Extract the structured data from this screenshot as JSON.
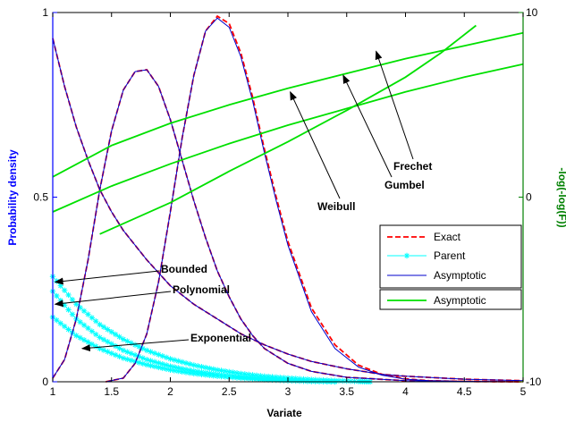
{
  "chart_data": {
    "type": "line",
    "xlabel": "Variate",
    "ylabel_left": "Probability density",
    "ylabel_right": "-log(-log(F))",
    "xlim": [
      1,
      5
    ],
    "ylim_left": [
      0,
      1
    ],
    "ylim_right": [
      -10,
      10
    ],
    "xticks": [
      "1",
      "1.5",
      "2",
      "2.5",
      "3",
      "3.5",
      "4",
      "4.5",
      "5"
    ],
    "yticks_left": [
      "0",
      "0.5",
      "1"
    ],
    "yticks_right": [
      "-10",
      "0",
      "10"
    ],
    "colors": {
      "exact": "#ff0000",
      "parent": "#00ffff",
      "asymptotic_pdf": "#0000cc",
      "asymptotic_line": "#00e000",
      "left_axis": "#0000ff",
      "right_axis": "#008000"
    },
    "legend_position": "right",
    "legend": [
      {
        "label": "Exact",
        "style": "dashed-red"
      },
      {
        "label": "Parent",
        "style": "cyan-star"
      },
      {
        "label": "Asymptotic",
        "style": "solid-blue"
      },
      {
        "label": "Asymptotic",
        "style": "solid-green"
      }
    ],
    "annotations": [
      {
        "text": "Bounded",
        "target": [
          1.02,
          0.27
        ]
      },
      {
        "text": "Polynomial",
        "target": [
          1.02,
          0.21
        ]
      },
      {
        "text": "Exponential",
        "target": [
          1.25,
          0.09
        ]
      },
      {
        "text": "Frechet",
        "target": [
          3.75,
          7.9
        ]
      },
      {
        "text": "Gumbel",
        "target": [
          3.47,
          6.6
        ]
      },
      {
        "text": "Weibull",
        "target": [
          3.02,
          5.7
        ]
      }
    ],
    "series": [
      {
        "name": "Exact",
        "curves": [
          {
            "x": [
              1.0,
              1.1,
              1.2,
              1.3,
              1.4,
              1.5,
              1.6,
              1.8,
              2.0,
              2.2,
              2.4,
              2.6,
              2.8,
              3.0,
              3.2,
              3.5,
              3.8,
              4.0,
              4.5,
              5.0
            ],
            "y": [
              0.93,
              0.8,
              0.69,
              0.6,
              0.52,
              0.46,
              0.41,
              0.33,
              0.26,
              0.21,
              0.17,
              0.13,
              0.1,
              0.075,
              0.055,
              0.035,
              0.02,
              0.015,
              0.007,
              0.003
            ]
          },
          {
            "x": [
              1.0,
              1.1,
              1.2,
              1.3,
              1.4,
              1.5,
              1.6,
              1.7,
              1.8,
              1.9,
              2.0,
              2.1,
              2.2,
              2.3,
              2.4,
              2.5,
              2.6,
              2.7,
              2.8,
              3.0,
              3.2,
              3.5,
              4.0,
              4.5,
              5.0
            ],
            "y": [
              0.01,
              0.06,
              0.17,
              0.33,
              0.52,
              0.68,
              0.79,
              0.84,
              0.845,
              0.8,
              0.71,
              0.6,
              0.49,
              0.39,
              0.3,
              0.23,
              0.17,
              0.125,
              0.09,
              0.05,
              0.028,
              0.012,
              0.003,
              0.001,
              0.0
            ]
          },
          {
            "x": [
              1.45,
              1.6,
              1.7,
              1.8,
              1.9,
              2.0,
              2.1,
              2.2,
              2.3,
              2.4,
              2.5,
              2.6,
              2.7,
              2.8,
              2.9,
              3.0,
              3.2,
              3.4,
              3.6,
              3.8,
              4.0,
              4.2,
              4.5,
              5.0
            ],
            "y": [
              0.0,
              0.01,
              0.05,
              0.13,
              0.27,
              0.46,
              0.66,
              0.83,
              0.95,
              0.99,
              0.97,
              0.89,
              0.77,
              0.63,
              0.5,
              0.38,
              0.2,
              0.1,
              0.045,
              0.02,
              0.008,
              0.003,
              0.001,
              0.0
            ]
          }
        ]
      },
      {
        "name": "Parent",
        "curves": [
          {
            "x": [
              1.0,
              1.2,
              1.4,
              1.6,
              1.8,
              2.0,
              2.2,
              2.4,
              2.6,
              2.8,
              3.0,
              3.2,
              3.4,
              3.6,
              3.7
            ],
            "y": [
              0.285,
              0.21,
              0.155,
              0.115,
              0.085,
              0.062,
              0.045,
              0.032,
              0.022,
              0.015,
              0.01,
              0.006,
              0.003,
              0.001,
              0.0
            ]
          },
          {
            "x": [
              1.0,
              1.2,
              1.4,
              1.6,
              1.8,
              2.0,
              2.2,
              2.4,
              2.6,
              2.8,
              3.0,
              3.2,
              3.4
            ],
            "y": [
              0.245,
              0.17,
              0.12,
              0.085,
              0.06,
              0.042,
              0.029,
              0.02,
              0.013,
              0.008,
              0.005,
              0.002,
              0.0
            ]
          },
          {
            "x": [
              1.0,
              1.2,
              1.4,
              1.6,
              1.8,
              2.0,
              2.2,
              2.4,
              2.6,
              2.8,
              3.0,
              3.2,
              3.4
            ],
            "y": [
              0.175,
              0.125,
              0.09,
              0.064,
              0.046,
              0.032,
              0.022,
              0.015,
              0.01,
              0.006,
              0.003,
              0.001,
              0.0
            ]
          }
        ]
      },
      {
        "name": "Asymptotic",
        "axis": "left",
        "curves": [
          {
            "x": [
              1.0,
              1.1,
              1.2,
              1.3,
              1.4,
              1.5,
              1.6,
              1.8,
              2.0,
              2.2,
              2.4,
              2.6,
              2.8,
              3.0,
              3.2,
              3.5,
              3.8,
              4.0,
              4.5,
              5.0
            ],
            "y": [
              0.93,
              0.8,
              0.69,
              0.6,
              0.52,
              0.46,
              0.41,
              0.33,
              0.26,
              0.21,
              0.17,
              0.13,
              0.1,
              0.075,
              0.055,
              0.035,
              0.02,
              0.015,
              0.007,
              0.003
            ]
          },
          {
            "x": [
              1.0,
              1.1,
              1.2,
              1.3,
              1.4,
              1.5,
              1.6,
              1.7,
              1.8,
              1.9,
              2.0,
              2.1,
              2.2,
              2.3,
              2.4,
              2.5,
              2.6,
              2.7,
              2.8,
              3.0,
              3.2,
              3.5,
              4.0,
              4.5,
              5.0
            ],
            "y": [
              0.01,
              0.06,
              0.17,
              0.33,
              0.52,
              0.68,
              0.79,
              0.84,
              0.845,
              0.8,
              0.71,
              0.6,
              0.49,
              0.39,
              0.3,
              0.23,
              0.17,
              0.125,
              0.09,
              0.05,
              0.028,
              0.012,
              0.003,
              0.001,
              0.0
            ]
          },
          {
            "x": [
              1.45,
              1.6,
              1.7,
              1.8,
              1.9,
              2.0,
              2.1,
              2.2,
              2.3,
              2.4,
              2.5,
              2.6,
              2.7,
              2.8,
              2.9,
              3.0,
              3.2,
              3.4,
              3.6,
              3.8,
              4.0,
              4.2,
              4.5,
              5.0
            ],
            "y": [
              0.0,
              0.01,
              0.05,
              0.13,
              0.27,
              0.46,
              0.66,
              0.83,
              0.95,
              0.985,
              0.96,
              0.88,
              0.76,
              0.62,
              0.49,
              0.37,
              0.19,
              0.09,
              0.04,
              0.018,
              0.007,
              0.003,
              0.001,
              0.0
            ]
          }
        ]
      },
      {
        "name": "Asymptotic",
        "axis": "right",
        "curves": [
          {
            "x": [
              1.0,
              1.5,
              2.0,
              2.5,
              3.0,
              3.5,
              4.0,
              4.5,
              5.0
            ],
            "y": [
              -0.8,
              0.6,
              1.8,
              2.9,
              3.9,
              4.8,
              5.7,
              6.5,
              7.2
            ]
          },
          {
            "x": [
              1.0,
              1.5,
              2.0,
              2.5,
              3.0,
              3.5,
              4.0,
              4.5,
              5.0
            ],
            "y": [
              1.1,
              2.8,
              4.0,
              5.0,
              5.9,
              6.7,
              7.5,
              8.2,
              8.9
            ]
          },
          {
            "x": [
              1.4,
              2.0,
              2.5,
              3.0,
              3.5,
              4.0,
              4.3,
              4.6
            ],
            "y": [
              -2.0,
              -0.3,
              1.4,
              3.0,
              4.7,
              6.5,
              7.8,
              9.3
            ]
          }
        ]
      }
    ]
  }
}
